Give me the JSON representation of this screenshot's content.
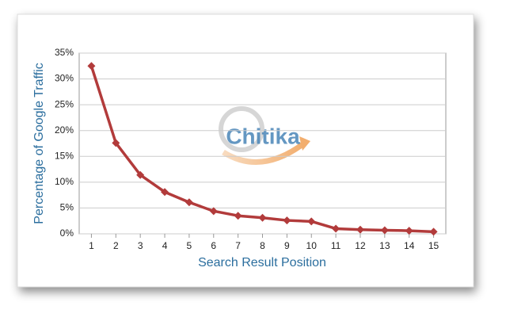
{
  "chart_data": {
    "type": "line",
    "x_label": "Search Result Position",
    "y_label": "Percentage of Google Traffic",
    "watermark": "Chitika",
    "categories": [
      "1",
      "2",
      "3",
      "4",
      "5",
      "6",
      "7",
      "8",
      "9",
      "10",
      "11",
      "12",
      "13",
      "14",
      "15"
    ],
    "series": [
      {
        "name": "Percentage of Google Traffic",
        "color": "#b23b3b",
        "values": [
          32.5,
          17.6,
          11.4,
          8.1,
          6.1,
          4.4,
          3.5,
          3.1,
          2.6,
          2.4,
          1.0,
          0.8,
          0.7,
          0.6,
          0.4
        ]
      }
    ],
    "ylim": [
      0,
      35
    ],
    "yticks": [
      {
        "value": 0,
        "label": "0%"
      },
      {
        "value": 5,
        "label": "5%"
      },
      {
        "value": 10,
        "label": "10%"
      },
      {
        "value": 15,
        "label": "15%"
      },
      {
        "value": 20,
        "label": "20%"
      },
      {
        "value": 25,
        "label": "25%"
      },
      {
        "value": 30,
        "label": "30%"
      },
      {
        "value": 35,
        "label": "35%"
      }
    ],
    "grid": true
  }
}
